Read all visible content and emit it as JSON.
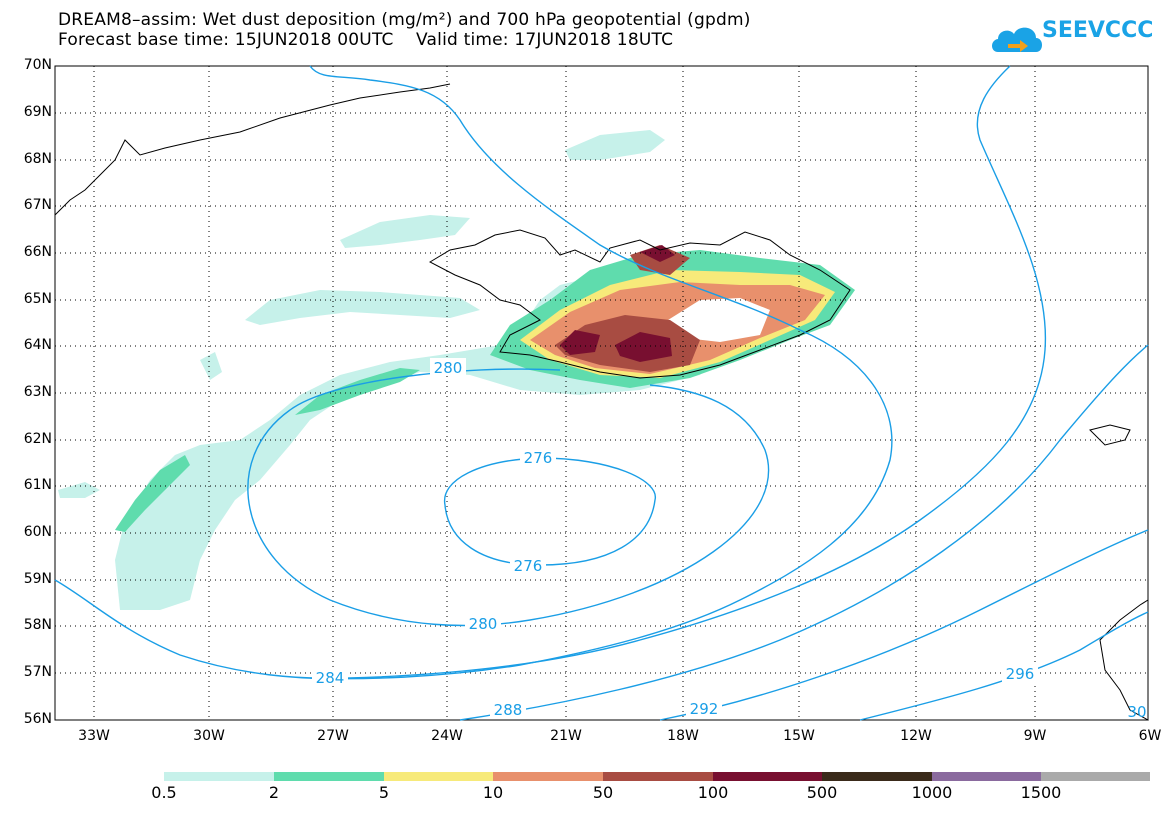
{
  "header": {
    "title_line1": "DREAM8–assim: Wet dust deposition (mg/m²) and 700 hPa geopotential (gpdm)",
    "title_line2": "Forecast base time: 15JUN2018 00UTC    Valid time: 17JUN2018 18UTC"
  },
  "logo": {
    "text": "SEEVCCC",
    "icon": "cloud-arrow-icon",
    "color": "#1aa3e6"
  },
  "map": {
    "lat_labels": [
      "70N",
      "69N",
      "68N",
      "67N",
      "66N",
      "65N",
      "64N",
      "63N",
      "62N",
      "61N",
      "60N",
      "59N",
      "58N",
      "57N",
      "56N"
    ],
    "lon_labels": [
      "33W",
      "30W",
      "27W",
      "24W",
      "21W",
      "18W",
      "15W",
      "12W",
      "9W",
      "6W"
    ],
    "contour_color": "#1a9ee6",
    "contour_labels": [
      "280",
      "276",
      "276",
      "280",
      "284",
      "288",
      "292",
      "296",
      "30"
    ]
  },
  "colorbar": {
    "colors": [
      "#c6f1ea",
      "#5fdcad",
      "#f7ea7a",
      "#e8906c",
      "#a84c42",
      "#780f30",
      "#3a2a1a",
      "#8a6a9e",
      "#aaaaaa"
    ],
    "labels": [
      "0.5",
      "2",
      "5",
      "10",
      "50",
      "100",
      "500",
      "1000",
      "1500"
    ]
  }
}
